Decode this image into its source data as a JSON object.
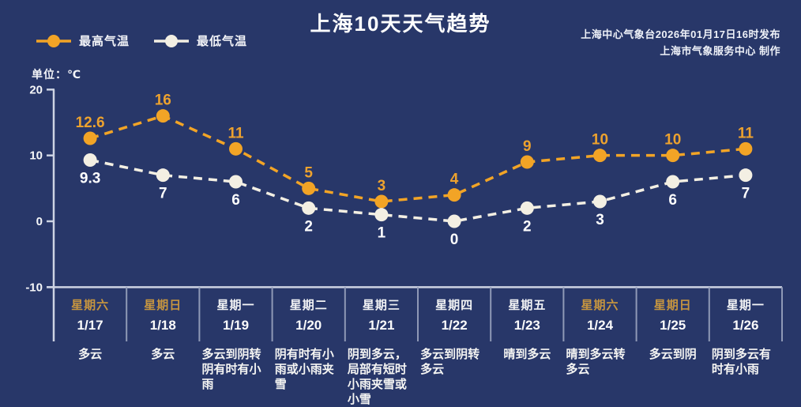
{
  "title": "上海10天天气趋势",
  "publisher": {
    "line1": "上海中心气象台2026年01月17日16时发布",
    "line2": "上海市气象服务中心 制作"
  },
  "legend": {
    "max_label": "最高气温",
    "min_label": "最低气温"
  },
  "unit_label": "单位：℃",
  "colors": {
    "background": "#283769",
    "max_series": "#f2a426",
    "min_series": "#f3efe3",
    "max_value_label": "#eda22e",
    "min_value_label": "#fefefe",
    "weekend_day": "#c6953f",
    "weekday_day": "#f2f3f5",
    "axis": "#cdd3e3",
    "divider": "#8f99b6",
    "tick_label": "#f5f6f8"
  },
  "chart_data": {
    "type": "line",
    "categories": [
      "1/17",
      "1/18",
      "1/19",
      "1/20",
      "1/21",
      "1/22",
      "1/23",
      "1/24",
      "1/25",
      "1/26"
    ],
    "series": [
      {
        "name": "最高气温",
        "values": [
          12.6,
          16,
          11,
          5,
          3,
          4,
          9,
          10,
          10,
          11
        ]
      },
      {
        "name": "最低气温",
        "values": [
          9.3,
          7,
          6,
          2,
          1,
          0,
          2,
          3,
          6,
          7
        ]
      }
    ],
    "title": "上海10天天气趋势",
    "xlabel": "",
    "ylabel": "单位：℃",
    "ylim": [
      -10,
      20
    ],
    "yticks": [
      20,
      10,
      0,
      -10
    ],
    "grid": false,
    "legend_position": "top-left",
    "line_style": "dashed"
  },
  "columns": [
    {
      "day": "星期六",
      "date": "1/17",
      "weekend": true,
      "weather": "多云"
    },
    {
      "day": "星期日",
      "date": "1/18",
      "weekend": true,
      "weather": "多云"
    },
    {
      "day": "星期一",
      "date": "1/19",
      "weekend": false,
      "weather": "多云到阴转阴有时有小雨"
    },
    {
      "day": "星期二",
      "date": "1/20",
      "weekend": false,
      "weather": "阴有时有小雨或小雨夹雪"
    },
    {
      "day": "星期三",
      "date": "1/21",
      "weekend": false,
      "weather": "阴到多云，局部有短时小雨夹雪或小雪"
    },
    {
      "day": "星期四",
      "date": "1/22",
      "weekend": false,
      "weather": "多云到阴转多云"
    },
    {
      "day": "星期五",
      "date": "1/23",
      "weekend": false,
      "weather": "晴到多云"
    },
    {
      "day": "星期六",
      "date": "1/24",
      "weekend": true,
      "weather": "晴到多云转多云"
    },
    {
      "day": "星期日",
      "date": "1/25",
      "weekend": true,
      "weather": "多云到阴"
    },
    {
      "day": "星期一",
      "date": "1/26",
      "weekend": false,
      "weather": "阴到多云有时有小雨"
    }
  ]
}
